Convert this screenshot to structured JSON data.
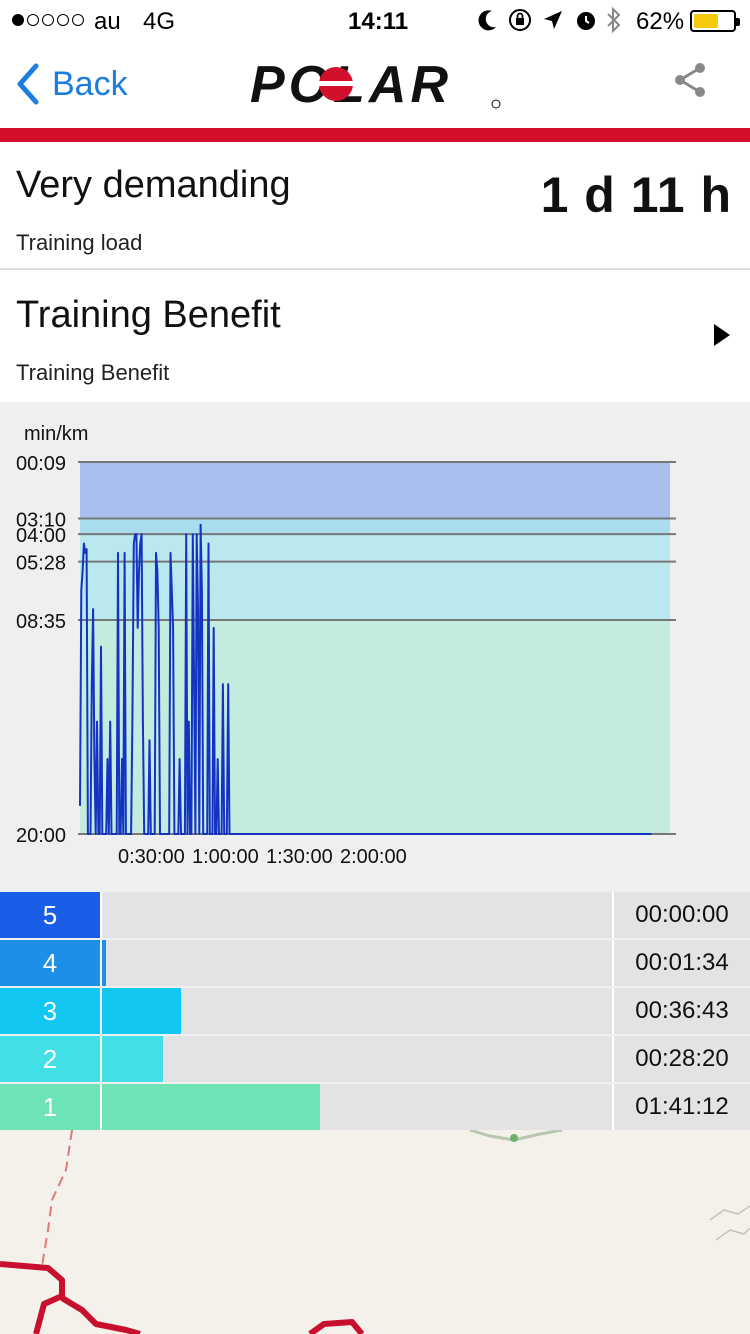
{
  "status_bar": {
    "signal_dots": 5,
    "signal_filled": 1,
    "carrier": "au",
    "network": "4G",
    "time": "14:11",
    "battery_percent": "62%",
    "battery_level": 0.62,
    "battery_color": "#f5c90c",
    "icons": [
      "moon-icon",
      "orientation-lock-icon",
      "location-arrow-icon",
      "alarm-icon",
      "bluetooth-icon"
    ]
  },
  "nav": {
    "back_label": "Back",
    "logo_text": "POLAR",
    "accent_color": "#1a7de1",
    "brand_color": "#d2102c",
    "share_icon": "share-icon"
  },
  "summary": {
    "training_load_value": "Very demanding",
    "training_load_label": "Training load",
    "recovery_time": "1 d 11 h",
    "training_benefit_title": "Training Benefit",
    "training_benefit_sub": "Training Benefit"
  },
  "chart_data": {
    "type": "line",
    "ylabel": "min/km",
    "y_tick_labels": [
      "00:09",
      "03:10",
      "04:00",
      "05:28",
      "08:35",
      "20:00"
    ],
    "y_tick_minutes": [
      0.15,
      3.1667,
      4.0,
      5.4667,
      8.5833,
      20.0
    ],
    "x_tick_labels": [
      "0:30:00",
      "1:00:00",
      "1:30:00",
      "2:00:00"
    ],
    "zone_bands": [
      {
        "from": 0.15,
        "to": 3.1667,
        "color": "#a9c0ef"
      },
      {
        "from": 3.1667,
        "to": 4.0,
        "color": "#a9dcef"
      },
      {
        "from": 4.0,
        "to": 8.5833,
        "color": "#b9e9ef"
      },
      {
        "from": 8.5833,
        "to": 20.0,
        "color": "#c3ecdf"
      }
    ],
    "series": [
      {
        "color": "#1433c2",
        "x_minutes": [
          0.0,
          0.5,
          1.0,
          1.5,
          2.0,
          2.5,
          3.0,
          3.5,
          4.0,
          4.5,
          5.0,
          5.5,
          6.0,
          6.5,
          7.0,
          7.5,
          8.0,
          8.5,
          9.0,
          9.5,
          10.0,
          10.5,
          11.0,
          11.5,
          12.0,
          12.5,
          13.0,
          13.5,
          14.0,
          14.5,
          15.0,
          15.5,
          16.0,
          16.5,
          17.0,
          17.5,
          18.0,
          18.5,
          19.0,
          19.5,
          20.0,
          20.5,
          21.0,
          21.5,
          22.0,
          22.5,
          23.0,
          23.5,
          24.0,
          24.5,
          25.0,
          25.5,
          26.0,
          26.5,
          27.0,
          27.5,
          28.0,
          28.5,
          29.0,
          29.5,
          30.0,
          30.5,
          31.0,
          31.5,
          32.0,
          32.5,
          33.0,
          33.5,
          34.0,
          34.5,
          35.0,
          35.5,
          36.0,
          36.5,
          37.0,
          37.5,
          38.0,
          38.5,
          39.0,
          39.5,
          40.0,
          40.5,
          41.0,
          41.5,
          42.0,
          42.5,
          43.0,
          43.5,
          44.0,
          44.5,
          45.0,
          45.5,
          46.0,
          46.5,
          47.0,
          47.5,
          48.0,
          48.5,
          49.0,
          49.5,
          50.0,
          50.5,
          51.0,
          51.5,
          52.0,
          52.5,
          53.0,
          53.5,
          54.0,
          54.5,
          55.0,
          55.5,
          56.0,
          56.5,
          57.0,
          57.5,
          58.0,
          58.5,
          59.0,
          59.5,
          60.0,
          60.5,
          61.0,
          61.5,
          62.0,
          62.5,
          63.0,
          63.5,
          64.0,
          64.5,
          65.0,
          65.5,
          66.0,
          66.5,
          67.0,
          67.5,
          68.0,
          68.5,
          69.0,
          69.5,
          70.0,
          70.5,
          71.0,
          71.5,
          72.0,
          72.5,
          73.0,
          73.5,
          74.0,
          74.5,
          75.0,
          75.5,
          76.0,
          76.5,
          77.0,
          77.5,
          78.0,
          78.5,
          79.0,
          79.5,
          80.0,
          80.5,
          81.0,
          81.5,
          82.0,
          82.5,
          83.0,
          83.5,
          84.0,
          84.5,
          85.0,
          85.5,
          86.0,
          86.5,
          87.0,
          87.5,
          88.0,
          88.5,
          89.0,
          89.5,
          90.0,
          90.5,
          91.0,
          91.5,
          92.0,
          92.5,
          93.0,
          93.5,
          94.0,
          94.5,
          95.0,
          95.5,
          96.0,
          96.5,
          97.0,
          97.5,
          98.0,
          98.5,
          99.0,
          99.5,
          100.0,
          100.5,
          101.0,
          101.5,
          102.0,
          102.5,
          103.0,
          103.5,
          104.0,
          104.5,
          105.0,
          105.5,
          106.0,
          106.5,
          107.0,
          107.5,
          108.0,
          108.5,
          109.0,
          109.5,
          110.0,
          110.5,
          111.0,
          111.5,
          112.0,
          112.5,
          113.0,
          113.5,
          114.0,
          114.5,
          115.0,
          115.5,
          116.0,
          116.5,
          117.0,
          117.5,
          118.0,
          118.5,
          119.0,
          119.5,
          120.0,
          120.5,
          121.0,
          121.5,
          122.0,
          122.5,
          123.0,
          123.5,
          124.0,
          124.5,
          125.0,
          125.5,
          126.0,
          126.5,
          127.0,
          127.5,
          128.0,
          128.5,
          129.0,
          129.5,
          130.0,
          130.5,
          131.0,
          131.5,
          132.0,
          132.5,
          133.0,
          133.5,
          134.0,
          134.5,
          135.0,
          135.5,
          136.0,
          136.5,
          137.0,
          137.5,
          138.0,
          138.5,
          139.0,
          139.5,
          140.0,
          140.5,
          141.0,
          141.5,
          142.0,
          142.5,
          143.0,
          143.5,
          144.0,
          144.5,
          145.0,
          145.5,
          146.0,
          146.5,
          147.0,
          147.5,
          148.0,
          148.5,
          149.0,
          149.5,
          150.0,
          150.5,
          151.0,
          151.5,
          152.0,
          152.5,
          153.0,
          153.5,
          154.0,
          154.5,
          155.0,
          155.5,
          156.0,
          156.5,
          157.0,
          157.5,
          158.0,
          158.5,
          159.0,
          159.5,
          160.0,
          160.5,
          161.0,
          161.5,
          162.0,
          162.5,
          163.0,
          163.5,
          164.0,
          164.5,
          165.0,
          165.5,
          166.0,
          166.5,
          167.0,
          167.5,
          168.0,
          168.5,
          169.0,
          169.5,
          170.0,
          170.5,
          171.0,
          171.5,
          172.0,
          172.5,
          173.0,
          173.5,
          174.0,
          174.5,
          175.0,
          175.5,
          176.0,
          176.5,
          177.0,
          177.5,
          178.0,
          178.5,
          179.0,
          179.5,
          180.0,
          180.5,
          181.0,
          181.5,
          182.0,
          182.5,
          183.0,
          183.5,
          184.0,
          184.5,
          185.0,
          185.5,
          186.0,
          186.5,
          187.0,
          187.5,
          188.0,
          188.5,
          189.0,
          189.5,
          190.0,
          190.5,
          191.0,
          191.5,
          192.0,
          192.5,
          193.0,
          193.5,
          194.0,
          194.5,
          195.0,
          195.5,
          196.0,
          196.5,
          197.0,
          197.5,
          198.0,
          198.5,
          199.0,
          199.5,
          200.0,
          200.5,
          201.0,
          201.5,
          202.0,
          202.5,
          203.0,
          203.5,
          204.0,
          204.5,
          205.0,
          205.5,
          206.0,
          206.5,
          207.0,
          207.5,
          208.0,
          208.5,
          209.0,
          209.5,
          210.0,
          210.5,
          211.0,
          211.5,
          212.0,
          212.5,
          213.0,
          213.5,
          214.0,
          214.5,
          215.0,
          215.5,
          216.0,
          216.5,
          217.0,
          217.5,
          218.0,
          218.5,
          219.0,
          219.5,
          220.0,
          220.5,
          221.0,
          221.5,
          222.0,
          222.5,
          223.0,
          223.5,
          224.0,
          224.5,
          225.0
        ],
        "pace_minutes": [
          18.5,
          7.0,
          6.0,
          4.5,
          5.0,
          4.8,
          20.0,
          20.0,
          20.0,
          12.0,
          8.0,
          16.0,
          20.0,
          14.0,
          20.0,
          20.0,
          10.0,
          20.0,
          20.0,
          20.0,
          20.0,
          16.0,
          20.0,
          14.0,
          20.0,
          20.0,
          20.0,
          20.0,
          20.0,
          5.0,
          20.0,
          20.0,
          16.0,
          20.0,
          5.0,
          20.0,
          20.0,
          20.0,
          20.0,
          20.0,
          14.0,
          4.5,
          4.0,
          4.0,
          9.0,
          6.0,
          4.5,
          4.0,
          14.0,
          20.0,
          20.0,
          20.0,
          20.0,
          15.0,
          20.0,
          20.0,
          20.0,
          20.0,
          5.0,
          6.0,
          9.0,
          20.0,
          20.0,
          20.0,
          20.0,
          20.0,
          20.0,
          20.0,
          20.0,
          5.0,
          7.0,
          9.0,
          20.0,
          20.0,
          20.0,
          20.0,
          16.0,
          20.0,
          20.0,
          20.0,
          20.0,
          4.0,
          20.0,
          14.0,
          20.0,
          20.0,
          4.0,
          12.0,
          20.0,
          4.0,
          8.0,
          20.0,
          3.5,
          7.0,
          20.0,
          20.0,
          20.0,
          20.0,
          4.5,
          20.0,
          20.0,
          20.0,
          9.0,
          20.0,
          20.0,
          16.0,
          20.0,
          20.0,
          20.0,
          12.0,
          20.0,
          20.0,
          20.0,
          12.0,
          20.0,
          20.0,
          20.0,
          20.0,
          20.0,
          20.0,
          20.0,
          20.0,
          20.0,
          20.0,
          20.0,
          20.0,
          20.0,
          20.0,
          20.0,
          20.0,
          20.0,
          20.0,
          20.0,
          20.0,
          20.0,
          20.0,
          20.0,
          20.0,
          20.0,
          20.0,
          20.0,
          20.0,
          20.0,
          20.0,
          20.0,
          20.0,
          20.0,
          20.0,
          20.0,
          20.0,
          20.0,
          20.0,
          20.0,
          20.0,
          20.0,
          20.0,
          20.0,
          20.0,
          20.0,
          20.0,
          20.0,
          20.0,
          20.0,
          20.0,
          20.0,
          20.0,
          20.0,
          20.0,
          20.0,
          20.0,
          20.0,
          20.0,
          20.0,
          20.0,
          20.0,
          20.0,
          20.0,
          20.0,
          20.0,
          20.0,
          20.0,
          20.0,
          20.0,
          20.0,
          20.0,
          20.0,
          20.0,
          20.0,
          20.0,
          20.0,
          20.0,
          20.0,
          20.0,
          20.0,
          20.0,
          20.0,
          20.0,
          20.0,
          20.0,
          20.0,
          20.0,
          20.0,
          20.0,
          20.0,
          20.0,
          20.0,
          20.0,
          20.0,
          20.0,
          20.0,
          20.0,
          20.0,
          20.0,
          20.0,
          20.0,
          20.0,
          20.0,
          20.0,
          20.0,
          20.0,
          20.0,
          20.0,
          20.0,
          20.0,
          20.0,
          20.0,
          20.0,
          20.0,
          20.0,
          20.0,
          20.0,
          20.0,
          20.0,
          20.0,
          20.0,
          20.0,
          20.0,
          20.0,
          20.0,
          20.0,
          20.0,
          20.0,
          20.0,
          20.0,
          20.0,
          20.0,
          20.0,
          20.0,
          20.0,
          20.0,
          20.0,
          20.0,
          20.0,
          20.0,
          20.0,
          20.0,
          20.0,
          20.0,
          20.0,
          20.0,
          20.0,
          20.0,
          20.0,
          20.0,
          20.0,
          20.0,
          20.0,
          20.0,
          20.0,
          20.0,
          20.0,
          20.0,
          20.0,
          20.0,
          20.0,
          20.0,
          20.0,
          20.0,
          20.0,
          20.0,
          20.0,
          20.0,
          20.0,
          20.0,
          20.0,
          20.0,
          20.0,
          20.0,
          20.0,
          20.0,
          20.0,
          20.0,
          20.0,
          20.0,
          20.0,
          20.0,
          20.0,
          20.0,
          20.0,
          20.0,
          20.0,
          20.0,
          20.0,
          20.0,
          20.0,
          20.0,
          20.0,
          20.0,
          20.0,
          20.0,
          20.0,
          20.0,
          20.0,
          20.0,
          20.0,
          20.0,
          20.0,
          20.0,
          20.0,
          20.0,
          20.0,
          20.0,
          20.0,
          20.0,
          20.0,
          20.0,
          20.0,
          20.0,
          20.0,
          20.0,
          20.0,
          20.0,
          20.0,
          20.0,
          20.0,
          20.0,
          20.0,
          20.0,
          20.0,
          20.0,
          20.0,
          20.0,
          20.0,
          20.0,
          20.0,
          20.0,
          20.0,
          20.0,
          20.0,
          20.0,
          20.0,
          20.0,
          20.0,
          20.0,
          20.0,
          20.0,
          20.0,
          20.0,
          20.0,
          20.0,
          20.0,
          20.0,
          20.0,
          20.0,
          20.0,
          20.0,
          20.0,
          20.0,
          20.0,
          20.0,
          20.0,
          20.0,
          20.0,
          20.0,
          20.0,
          20.0,
          20.0,
          20.0,
          20.0,
          20.0,
          20.0,
          20.0,
          20.0,
          20.0,
          20.0,
          20.0,
          20.0,
          20.0,
          20.0,
          20.0,
          20.0,
          20.0,
          20.0,
          20.0,
          20.0,
          20.0,
          20.0,
          20.0,
          20.0,
          20.0,
          20.0,
          20.0,
          20.0,
          20.0,
          20.0,
          20.0,
          20.0,
          20.0,
          20.0,
          20.0,
          20.0,
          20.0,
          20.0,
          20.0,
          20.0,
          20.0,
          20.0,
          20.0,
          20.0,
          20.0,
          20.0,
          20.0,
          20.0,
          20.0,
          20.0,
          20.0,
          20.0,
          20.0,
          20.0,
          20.0,
          20.0,
          20.0,
          20.0,
          20.0,
          20.0,
          20.0,
          20.0
        ]
      }
    ]
  },
  "zones": [
    {
      "zone": "5",
      "time": "00:00:00",
      "fraction": 0.0,
      "num_color": "#1a5ee8",
      "bar_color": "#1a5ee8"
    },
    {
      "zone": "4",
      "time": "00:01:34",
      "fraction": 0.008,
      "num_color": "#1e8fe6",
      "bar_color": "#1e8fe6"
    },
    {
      "zone": "3",
      "time": "00:36:43",
      "fraction": 0.155,
      "num_color": "#12c8f2",
      "bar_color": "#12c8f2"
    },
    {
      "zone": "2",
      "time": "00:28:20",
      "fraction": 0.119,
      "num_color": "#42e0e6",
      "bar_color": "#42e0e6"
    },
    {
      "zone": "1",
      "time": "01:41:12",
      "fraction": 0.427,
      "num_color": "#6ee3b5",
      "bar_color": "#6ee3b5"
    }
  ]
}
